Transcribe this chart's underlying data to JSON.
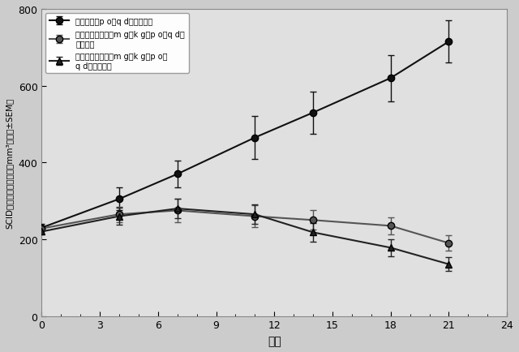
{
  "x": [
    0,
    4,
    7,
    11,
    14,
    18,
    21
  ],
  "series1": {
    "label": "ビヒクル、p o、q d、２１日間",
    "y": [
      230,
      305,
      370,
      465,
      530,
      620,
      715
    ],
    "yerr": [
      10,
      30,
      35,
      55,
      55,
      60,
      55
    ],
    "marker": "o",
    "color": "#111111",
    "markersize": 6
  },
  "series2": {
    "label": "実施例１２、３０m g／k g、p o、q d、\n２１日間",
    "y": [
      228,
      265,
      275,
      260,
      250,
      235,
      190
    ],
    "yerr": [
      8,
      20,
      30,
      28,
      25,
      22,
      20
    ],
    "marker": "o",
    "color": "#555555",
    "markersize": 6
  },
  "series3": {
    "label": "実施例１２、５０m g／k g、p o、\nq d、２１日間",
    "y": [
      220,
      260,
      280,
      265,
      218,
      178,
      135
    ],
    "yerr": [
      8,
      22,
      25,
      25,
      25,
      22,
      18
    ],
    "marker": "^",
    "color": "#222222",
    "markersize": 6
  },
  "xlabel": "日数",
  "ylabel_chars": [
    "Ｓ",
    "Ｃ",
    "Ｉ",
    "Ｄ",
    "マ",
    "ウ",
    "ス",
    "の",
    "腾",
    "瘍",
    "体",
    "積",
    "（",
    "m",
    "m",
    "３",
    "、",
    "平",
    "均",
    "±",
    "S",
    "E",
    "M",
    "）"
  ],
  "ylabel": "SCIDマウスの腾瘍体積（mm³、平均±SEM）",
  "xlim": [
    0,
    24
  ],
  "ylim": [
    0,
    800
  ],
  "xticks": [
    0,
    3,
    6,
    9,
    12,
    15,
    18,
    21,
    24
  ],
  "yticks": [
    0,
    200,
    400,
    600,
    800
  ],
  "background_color": "#cccccc",
  "plot_bg_color": "#e0e0e0"
}
